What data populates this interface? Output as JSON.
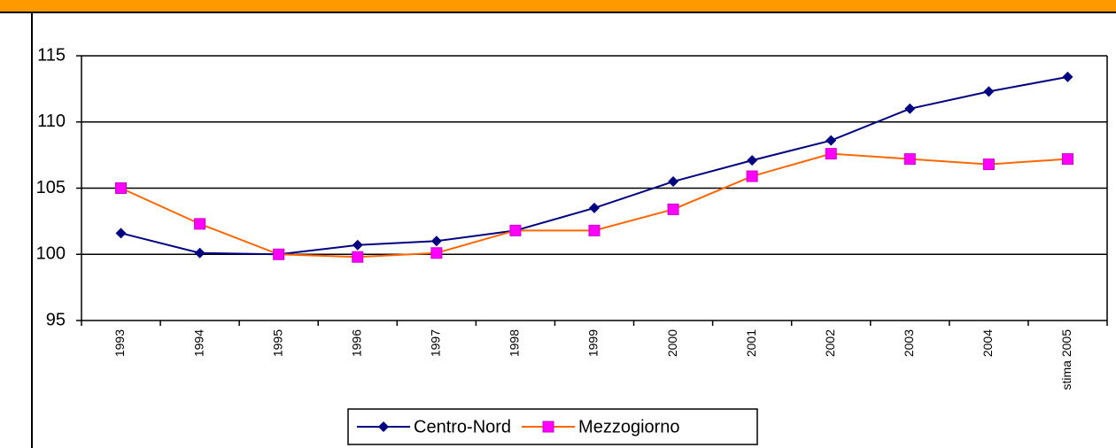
{
  "chart_data": {
    "type": "line",
    "categories": [
      "1993",
      "1994",
      "1995",
      "1996",
      "1997",
      "1998",
      "1999",
      "2000",
      "2001",
      "2002",
      "2003",
      "2004",
      "stima 2005"
    ],
    "series": [
      {
        "name": "Centro-Nord",
        "color": "#000080",
        "marker_color": "#000080",
        "marker": "diamond",
        "values": [
          101.6,
          100.1,
          100,
          100.7,
          101,
          101.8,
          103.5,
          105.5,
          107.1,
          108.6,
          111,
          112.3,
          113.4
        ]
      },
      {
        "name": "Mezzogiorno",
        "color": "#ff6600",
        "marker_color": "#ff00ff",
        "marker": "square",
        "values": [
          105,
          102.3,
          100,
          99.8,
          100.1,
          101.8,
          101.8,
          103.4,
          105.9,
          107.6,
          107.2,
          106.8,
          107.2
        ]
      }
    ],
    "ylim": [
      95,
      115
    ],
    "yticks": [
      95,
      100,
      105,
      110,
      115
    ],
    "grid": true,
    "legend": "bottom"
  }
}
